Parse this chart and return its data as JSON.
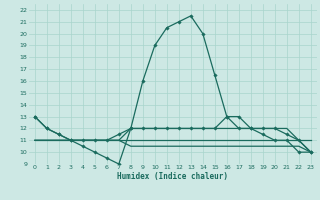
{
  "xlabel": "Humidex (Indice chaleur)",
  "background_color": "#cde8e4",
  "grid_color": "#a8d5cd",
  "line_color": "#1a6b5e",
  "xlim": [
    -0.5,
    23.5
  ],
  "ylim": [
    9,
    22.5
  ],
  "yticks": [
    9,
    10,
    11,
    12,
    13,
    14,
    15,
    16,
    17,
    18,
    19,
    20,
    21,
    22
  ],
  "xticks": [
    0,
    1,
    2,
    3,
    4,
    5,
    6,
    7,
    8,
    9,
    10,
    11,
    12,
    13,
    14,
    15,
    16,
    17,
    18,
    19,
    20,
    21,
    22,
    23
  ],
  "line1": [
    13,
    12,
    11.5,
    11,
    10.5,
    10,
    9.5,
    9,
    12,
    16,
    19,
    20.5,
    21,
    21.5,
    20,
    16.5,
    13,
    12,
    12,
    11.5,
    11,
    11,
    10,
    10
  ],
  "line1_markers": [
    0,
    1,
    2,
    3,
    4,
    5,
    6,
    7,
    8,
    9,
    10,
    11,
    12,
    13,
    14,
    15,
    16,
    17,
    18,
    19,
    20,
    21,
    22,
    23
  ],
  "line2": [
    13,
    12,
    11.5,
    11,
    11,
    11,
    11,
    11.5,
    12,
    12,
    12,
    12,
    12,
    12,
    12,
    12,
    13,
    13,
    12,
    12,
    12,
    11.5,
    11,
    10
  ],
  "line2_markers": [
    0,
    1,
    2,
    3,
    8,
    9,
    10,
    11,
    12,
    13,
    14,
    15,
    16,
    17,
    18,
    19,
    20,
    21,
    22,
    23
  ],
  "line3": [
    11,
    11,
    11,
    11,
    11,
    11,
    11,
    11,
    11,
    11,
    11,
    11,
    11,
    11,
    11,
    11,
    11,
    11,
    11,
    11,
    11,
    11,
    11,
    11
  ],
  "line4": [
    11,
    11,
    11,
    11,
    11,
    11,
    11,
    11,
    12,
    12,
    12,
    12,
    12,
    12,
    12,
    12,
    12,
    12,
    12,
    12,
    12,
    12,
    11,
    10
  ],
  "line5": [
    11,
    11,
    11,
    11,
    11,
    11,
    11,
    11,
    10.5,
    10.5,
    10.5,
    10.5,
    10.5,
    10.5,
    10.5,
    10.5,
    10.5,
    10.5,
    10.5,
    10.5,
    10.5,
    10.5,
    10.5,
    10
  ]
}
